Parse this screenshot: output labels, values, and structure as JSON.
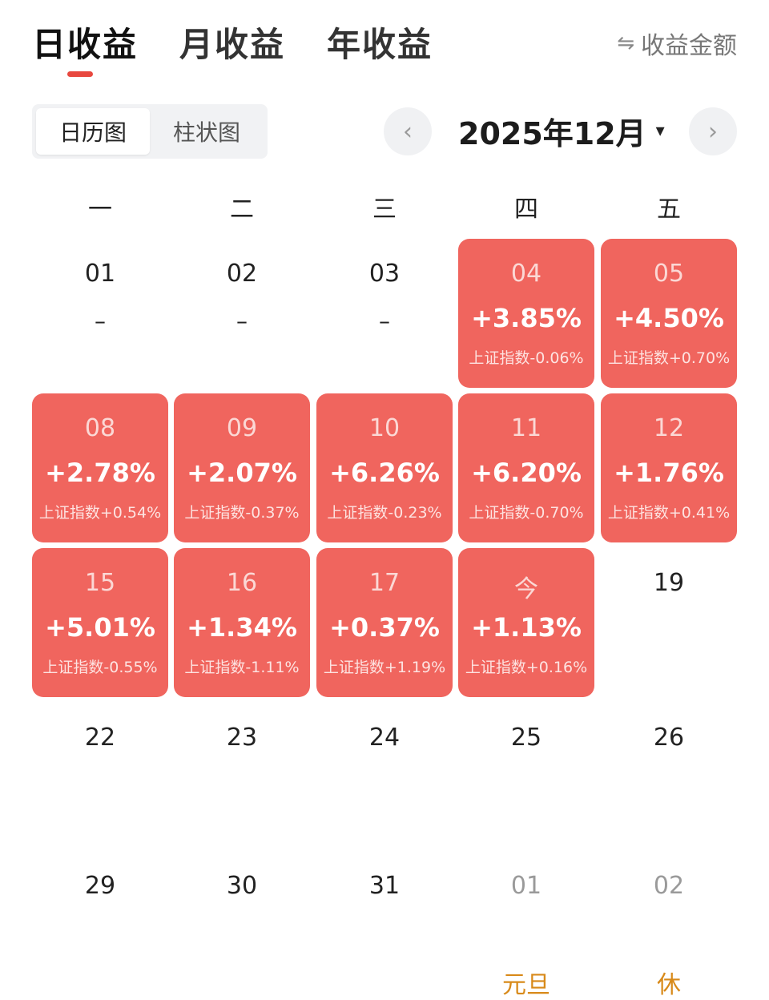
{
  "tabs": [
    "日收益",
    "月收益",
    "年收益"
  ],
  "amount_toggle": {
    "icon": "swap-icon",
    "label": "收益金额"
  },
  "view_switch": [
    "日历图",
    "柱状图"
  ],
  "month_nav": {
    "title": "2025年12月",
    "prev": "‹",
    "next": "›",
    "caret": "▾"
  },
  "weekdays": [
    "一",
    "二",
    "三",
    "四",
    "五"
  ],
  "colors": {
    "gain": "#f0655e",
    "accent": "#e8483f",
    "holiday": "#d88a1a"
  },
  "weeks": [
    [
      {
        "day": "01",
        "pct": "–"
      },
      {
        "day": "02",
        "pct": "–"
      },
      {
        "day": "03",
        "pct": "–"
      },
      {
        "day": "04",
        "pct": "+3.85%",
        "index": "上证指数-0.06%"
      },
      {
        "day": "05",
        "pct": "+4.50%",
        "index": "上证指数+0.70%"
      }
    ],
    [
      {
        "day": "08",
        "pct": "+2.78%",
        "index": "上证指数+0.54%"
      },
      {
        "day": "09",
        "pct": "+2.07%",
        "index": "上证指数-0.37%"
      },
      {
        "day": "10",
        "pct": "+6.26%",
        "index": "上证指数-0.23%"
      },
      {
        "day": "11",
        "pct": "+6.20%",
        "index": "上证指数-0.70%"
      },
      {
        "day": "12",
        "pct": "+1.76%",
        "index": "上证指数+0.41%"
      }
    ],
    [
      {
        "day": "15",
        "pct": "+5.01%",
        "index": "上证指数-0.55%"
      },
      {
        "day": "16",
        "pct": "+1.34%",
        "index": "上证指数-1.11%"
      },
      {
        "day": "17",
        "pct": "+0.37%",
        "index": "上证指数+1.19%"
      },
      {
        "day": "今",
        "pct": "+1.13%",
        "index": "上证指数+0.16%"
      },
      {
        "day": "19"
      }
    ],
    [
      {
        "day": "22"
      },
      {
        "day": "23"
      },
      {
        "day": "24"
      },
      {
        "day": "25"
      },
      {
        "day": "26"
      }
    ],
    [
      {
        "day": "29"
      },
      {
        "day": "30"
      },
      {
        "day": "31"
      },
      {
        "day": "01",
        "next_month": true,
        "holiday": "元旦"
      },
      {
        "day": "02",
        "next_month": true,
        "holiday": "休"
      }
    ]
  ]
}
